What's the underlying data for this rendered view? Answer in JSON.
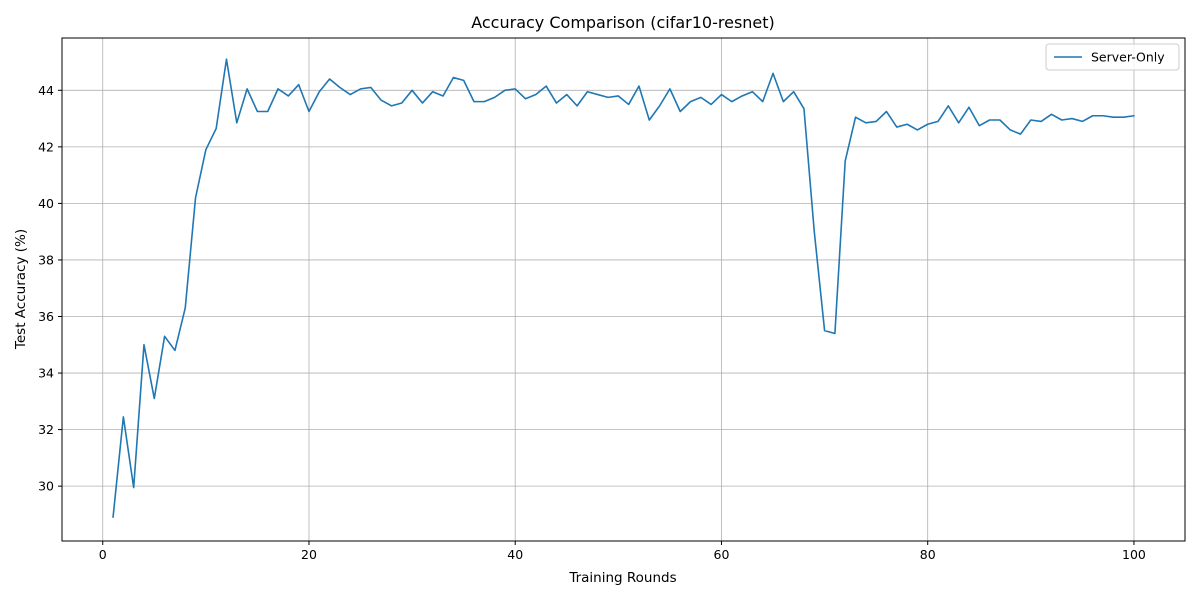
{
  "chart_data": {
    "type": "line",
    "title": "Accuracy Comparison (cifar10-resnet)",
    "xlabel": "Training Rounds",
    "ylabel": "Test Accuracy (%)",
    "xlim": [
      -3.95,
      104.95
    ],
    "ylim": [
      28.06,
      45.85
    ],
    "xticks": [
      0,
      20,
      40,
      60,
      80,
      100
    ],
    "yticks": [
      30,
      32,
      34,
      36,
      38,
      40,
      42,
      44
    ],
    "grid": true,
    "legend_position": "top-right",
    "series": [
      {
        "name": "Server-Only",
        "color": "#1f77b4",
        "x": [
          1,
          2,
          3,
          4,
          5,
          6,
          7,
          8,
          9,
          10,
          11,
          12,
          13,
          14,
          15,
          16,
          17,
          18,
          19,
          20,
          21,
          22,
          23,
          24,
          25,
          26,
          27,
          28,
          29,
          30,
          31,
          32,
          33,
          34,
          35,
          36,
          37,
          38,
          39,
          40,
          41,
          42,
          43,
          44,
          45,
          46,
          47,
          48,
          49,
          50,
          51,
          52,
          53,
          54,
          55,
          56,
          57,
          58,
          59,
          60,
          61,
          62,
          63,
          64,
          65,
          66,
          67,
          68,
          69,
          70,
          71,
          72,
          73,
          74,
          75,
          76,
          77,
          78,
          79,
          80,
          81,
          82,
          83,
          84,
          85,
          86,
          87,
          88,
          89,
          90,
          91,
          92,
          93,
          94,
          95,
          96,
          97,
          98,
          99,
          100
        ],
        "y": [
          28.9,
          32.45,
          29.95,
          35.0,
          33.1,
          35.3,
          34.8,
          36.3,
          40.2,
          41.9,
          42.65,
          45.1,
          42.85,
          44.05,
          43.25,
          43.25,
          44.05,
          43.8,
          44.2,
          43.25,
          43.95,
          44.4,
          44.1,
          43.85,
          44.05,
          44.1,
          43.65,
          43.45,
          43.55,
          44.0,
          43.55,
          43.95,
          43.8,
          44.45,
          44.35,
          43.6,
          43.6,
          43.75,
          44.0,
          44.05,
          43.7,
          43.85,
          44.15,
          43.55,
          43.85,
          43.45,
          43.95,
          43.85,
          43.75,
          43.8,
          43.5,
          44.15,
          42.95,
          43.45,
          44.05,
          43.25,
          43.6,
          43.75,
          43.5,
          43.85,
          43.6,
          43.8,
          43.95,
          43.6,
          44.6,
          43.6,
          43.95,
          43.35,
          39.0,
          35.5,
          35.4,
          41.5,
          43.05,
          42.85,
          42.9,
          43.25,
          42.7,
          42.8,
          42.6,
          42.8,
          42.9,
          43.45,
          42.85,
          43.4,
          42.75,
          42.95,
          42.95,
          42.6,
          42.45,
          42.95,
          42.9,
          43.15,
          42.95,
          43.0,
          42.9,
          43.1,
          43.1,
          43.05,
          43.05,
          43.1
        ]
      }
    ]
  }
}
